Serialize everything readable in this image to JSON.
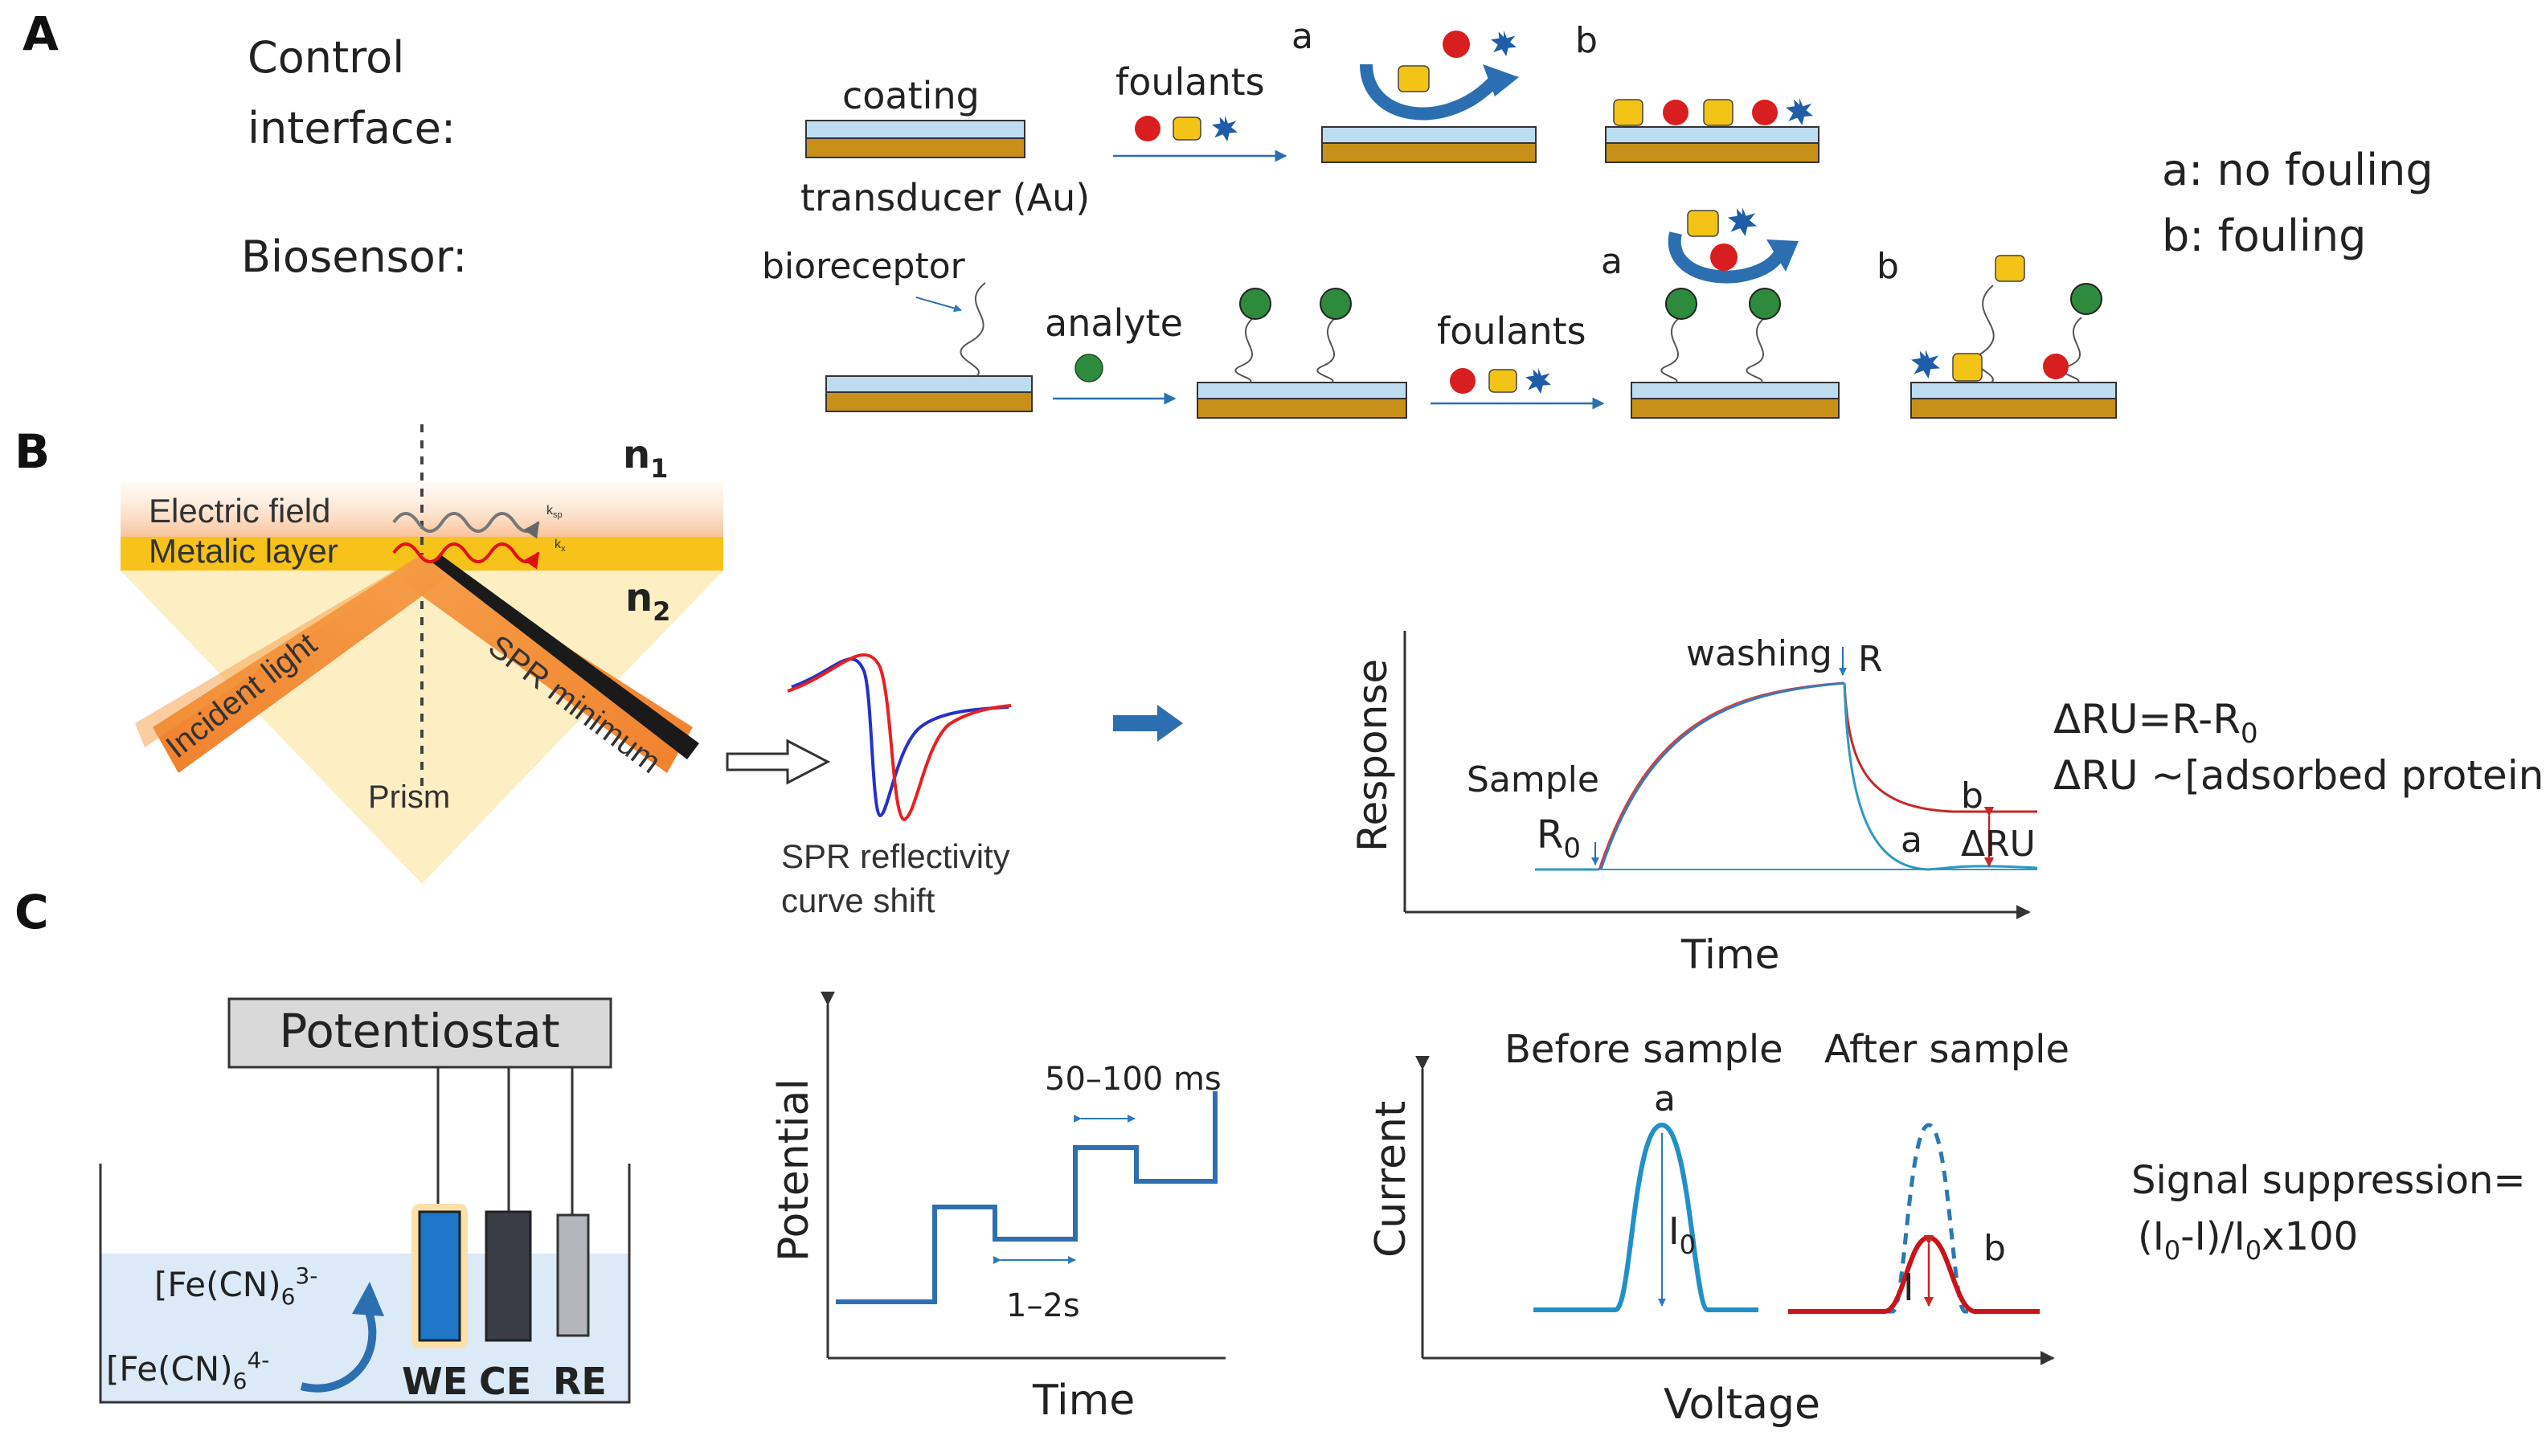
{
  "panels": {
    "a": "A",
    "b": "B",
    "c": "C"
  },
  "panel_a": {
    "control_interface_line1": "Control",
    "control_interface_line2": "interface:",
    "biosensor": "Biosensor:",
    "coating": "coating",
    "transducer": "transducer (Au)",
    "foulants_top": "foulants",
    "foulants_bottom": "foulants",
    "bioreceptor": "bioreceptor",
    "analyte": "analyte",
    "label_a_top": "a",
    "label_b_top": "b",
    "label_a_bottom": "a",
    "label_b_bottom": "b",
    "legend_a": "a: no fouling",
    "legend_b": "b: fouling",
    "colors": {
      "coating": "#bddcf0",
      "gold": "#c89018",
      "foulant_red": "#d81e1e",
      "foulant_yellow": "#f3c316",
      "foulant_blue": "#1f5da8",
      "analyte_green": "#2e8b3e",
      "arrow": "#2c6fb0"
    }
  },
  "panel_b": {
    "n1": "n",
    "n1_sub": "1",
    "n2": "n",
    "n2_sub": "2",
    "electric_field": "Electric field",
    "metalic_layer": "Metalic layer",
    "ksp": "k",
    "ksp_sub": "sp",
    "kx": "k",
    "kx_sub": "x",
    "incident_light": "Incident light",
    "spr_minimum": "SPR minimum",
    "prism": "Prism",
    "curve_caption_line1": "SPR reflectivity",
    "curve_caption_line2": "curve shift",
    "sensorgram": {
      "ylabel": "Response",
      "xlabel": "Time",
      "washing": "washing",
      "r_label": "R",
      "sample": "Sample",
      "r0": "R",
      "r0_sub": "0",
      "label_a": "a",
      "label_b": "b",
      "delta_ru": "ΔRU"
    },
    "formula_line1": "ΔRU=R-R",
    "formula_line1_sub": "0",
    "formula_line2": "ΔRU ~[adsorbed protein]"
  },
  "panel_c": {
    "potentiostat": "Potentiostat",
    "ferricyanide": "[Fe(CN)",
    "ferricyanide_sub": "6",
    "ferricyanide_sup": "3-",
    "ferrocyanide": "[Fe(CN)",
    "ferrocyanide_sub": "6",
    "ferrocyanide_sup": "4-",
    "we": "WE",
    "ce": "CE",
    "re": "RE",
    "waveform": {
      "ylabel": "Potential",
      "xlabel": "Time",
      "pulse_width": "50–100 ms",
      "step_time": "1–2s"
    },
    "voltammogram": {
      "ylabel": "Current",
      "xlabel": "Voltage",
      "before": "Before sample",
      "after": "After sample",
      "label_a": "a",
      "label_b": "b",
      "i0": "I",
      "i0_sub": "0",
      "i": "I"
    },
    "suppression_line1": "Signal suppression=",
    "suppression_line2": "(I",
    "suppression_line2_sub1": "0",
    "suppression_line2_mid": "-I)/I",
    "suppression_line2_sub2": "0",
    "suppression_line2_end": "x100"
  }
}
